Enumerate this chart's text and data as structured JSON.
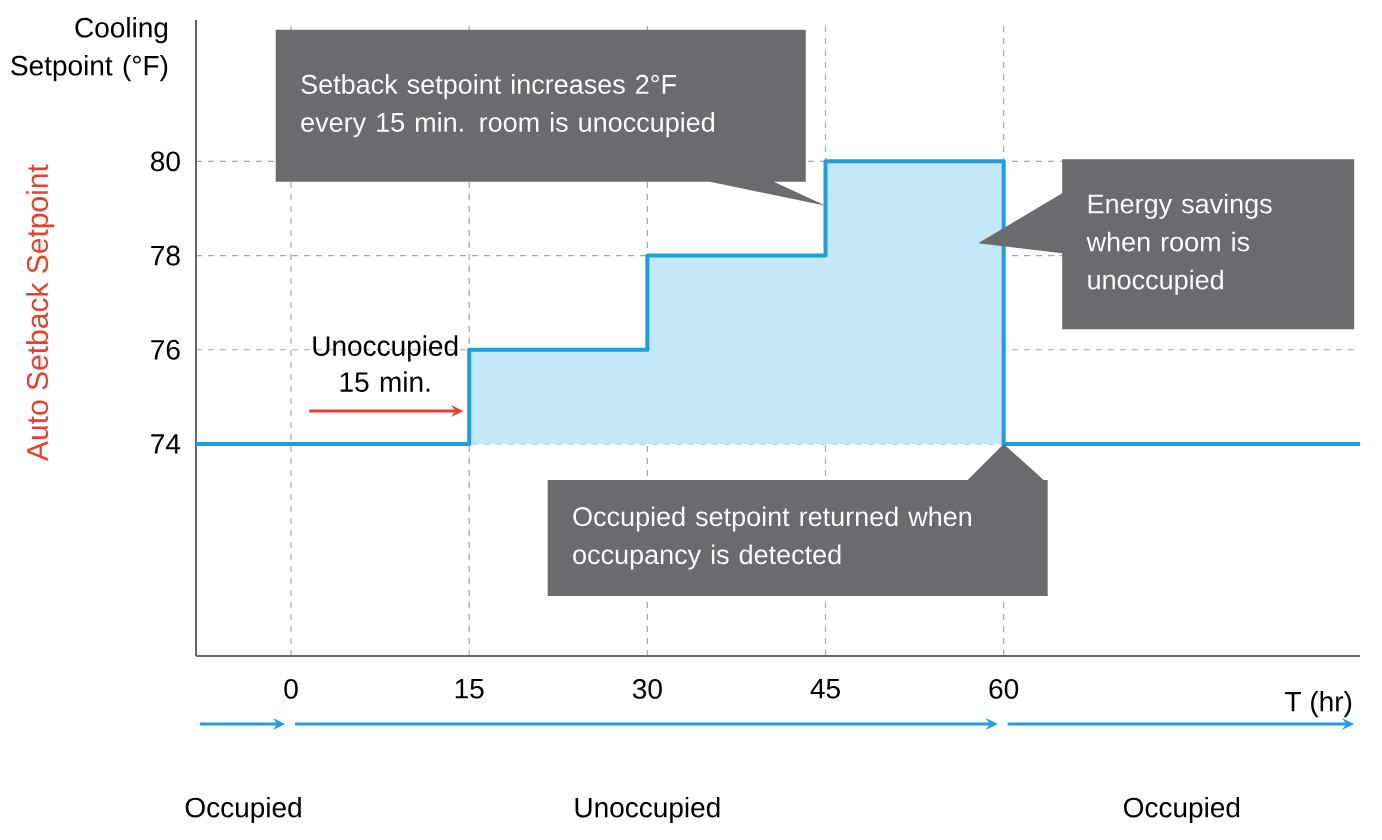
{
  "chart_data": {
    "type": "step",
    "title": "Cooling Setpoint (°F)",
    "ylabel": "Auto Setback Setpoint",
    "xlabel": "T (hr)",
    "x": [
      -8,
      15,
      30,
      45,
      60,
      90
    ],
    "xlim": [
      -8,
      90
    ],
    "xticks": [
      0,
      15,
      30,
      45,
      60
    ],
    "ylim": [
      69.5,
      83
    ],
    "yticks": [
      74,
      76,
      78,
      80
    ],
    "grid": true,
    "series": [
      {
        "color": "#1a9fe0",
        "values": [
          74,
          76,
          78,
          80,
          74,
          74
        ],
        "lower": [
          74,
          74,
          74,
          74,
          74,
          74
        ],
        "upper": [
          74,
          76,
          78,
          80,
          74,
          74
        ]
      }
    ],
    "annotations": [
      "Setback setpoint increases 2°F every 15 min. room is unoccupied",
      "Energy savings when room is unoccupied",
      {
        "text": "Occupied setpoint returned when occupancy is detected",
        "x": 60,
        "y": 74
      },
      {
        "text": "Unoccupied 15 min.",
        "x": 15,
        "y": 74.7
      },
      "Occupied",
      "Unoccupied",
      "Occupied"
    ]
  }
}
